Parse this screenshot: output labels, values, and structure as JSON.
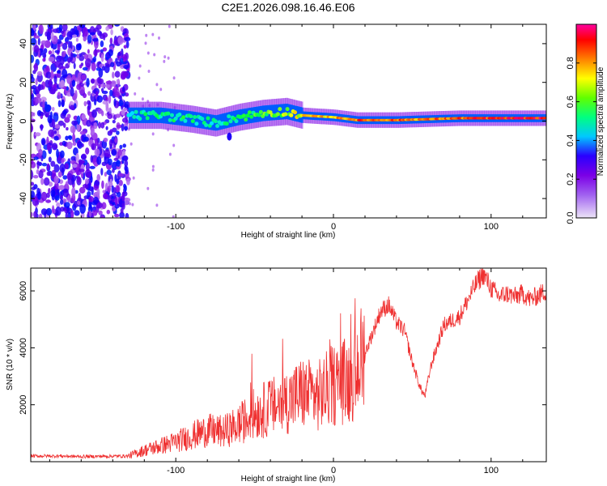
{
  "title": "C2E1.2026.098.16.46.E06",
  "chart_data": [
    {
      "type": "heatmap",
      "name": "spectrogram",
      "xlabel": "Height of straight line (km)",
      "ylabel": "Frequency (Hz)",
      "xlim": [
        -192,
        135
      ],
      "ylim": [
        -50,
        50
      ],
      "xticks": [
        -100,
        0,
        100
      ],
      "xtick_labels": [
        "-100",
        "0",
        "100"
      ],
      "yticks": [
        -40,
        -20,
        0,
        20,
        40
      ],
      "ytick_labels": [
        "-40",
        "-20",
        "0",
        "20",
        "40"
      ],
      "colorbar": {
        "label": "Normalized spectral amplitude",
        "range": [
          0,
          1
        ],
        "ticks": [
          0.0,
          0.2,
          0.4,
          0.6,
          0.8
        ],
        "tick_labels": [
          "0.0",
          "0.2",
          "0.4",
          "0.6",
          "0.8"
        ],
        "colors": [
          "#ece4f7",
          "#7b00e6",
          "#0000ff",
          "#00e5ff",
          "#00ff40",
          "#ffff00",
          "#ff8000",
          "#ff0000",
          "#ff00a0"
        ]
      },
      "noise_region_km": [
        -192,
        -130
      ],
      "signal_band": [
        {
          "x": -130,
          "center_hz": 3,
          "amplitude": 0.45
        },
        {
          "x": -110,
          "center_hz": 3,
          "amplitude": 0.5
        },
        {
          "x": -90,
          "center_hz": 1,
          "amplitude": 0.5
        },
        {
          "x": -75,
          "center_hz": -1,
          "amplitude": 0.45
        },
        {
          "x": -60,
          "center_hz": 2,
          "amplitude": 0.5
        },
        {
          "x": -45,
          "center_hz": 4,
          "amplitude": 0.55
        },
        {
          "x": -30,
          "center_hz": 5,
          "amplitude": 0.6
        },
        {
          "x": -20,
          "center_hz": 3,
          "amplitude": 0.7
        },
        {
          "x": 0,
          "center_hz": 2,
          "amplitude": 0.75
        },
        {
          "x": 15,
          "center_hz": 0.5,
          "amplitude": 0.85
        },
        {
          "x": 40,
          "center_hz": 0.5,
          "amplitude": 0.85
        },
        {
          "x": 60,
          "center_hz": 1,
          "amplitude": 0.8
        },
        {
          "x": 80,
          "center_hz": 1.5,
          "amplitude": 0.85
        },
        {
          "x": 100,
          "center_hz": 1.5,
          "amplitude": 0.9
        },
        {
          "x": 135,
          "center_hz": 1.5,
          "amplitude": 0.95
        }
      ]
    },
    {
      "type": "line",
      "name": "snr",
      "xlabel": "Height of straight line (km)",
      "ylabel": "SNR (10 * v/v)",
      "xlim": [
        -192,
        135
      ],
      "ylim": [
        0,
        6800
      ],
      "xticks": [
        -100,
        0,
        100
      ],
      "xtick_labels": [
        "-100",
        "0",
        "100"
      ],
      "yticks": [
        2000,
        4000,
        6000
      ],
      "ytick_labels": [
        "2000",
        "4000",
        "6000"
      ],
      "color": "#ef3030",
      "series": [
        {
          "name": "SNR",
          "x": [
            -192,
            -175,
            -160,
            -145,
            -130,
            -120,
            -110,
            -100,
            -90,
            -80,
            -70,
            -60,
            -50,
            -40,
            -30,
            -20,
            -10,
            0,
            10,
            20,
            30,
            35,
            40,
            45,
            50,
            55,
            58,
            62,
            70,
            80,
            90,
            95,
            100,
            105,
            110,
            115,
            120,
            125,
            135
          ],
          "values": [
            200,
            200,
            180,
            190,
            200,
            400,
            550,
            700,
            900,
            1100,
            1050,
            1300,
            1700,
            1900,
            2100,
            2400,
            2300,
            2700,
            2900,
            3800,
            5300,
            5500,
            4900,
            4600,
            3500,
            2600,
            2300,
            3400,
            4800,
            5100,
            6200,
            6600,
            6100,
            5800,
            5900,
            5800,
            5900,
            5700,
            6000
          ]
        }
      ]
    }
  ]
}
